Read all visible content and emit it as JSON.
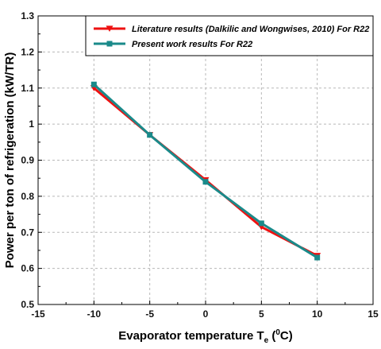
{
  "chart_data": {
    "type": "line",
    "xlabel": "Evaporator temperature T",
    "xlabel_sub": "e",
    "xlabel_unit_open": " (",
    "xlabel_sup": "0",
    "xlabel_unit_close": "C)",
    "ylabel": "Power per ton of refrigeration (kW/TR)",
    "xlim": [
      -15,
      15
    ],
    "ylim": [
      0.5,
      1.3
    ],
    "xticks": [
      -15,
      -10,
      -5,
      0,
      5,
      10,
      15
    ],
    "yticks": [
      0.5,
      0.6,
      0.7,
      0.8,
      0.9,
      1.0,
      1.1,
      1.2,
      1.3
    ],
    "grid": true,
    "legend_position": "top-right",
    "series": [
      {
        "name": "Literature results (Dalkilic and Wongwises, 2010) For R22",
        "color": "#ee1111",
        "marker": "triangle-down",
        "x": [
          -10,
          -5,
          0,
          5,
          10
        ],
        "y": [
          1.1,
          0.97,
          0.845,
          0.715,
          0.635
        ]
      },
      {
        "name": "Present work results For R22",
        "color": "#1a8a8a",
        "marker": "square",
        "x": [
          -10,
          -5,
          0,
          5,
          10
        ],
        "y": [
          1.11,
          0.97,
          0.84,
          0.725,
          0.63
        ]
      }
    ]
  }
}
